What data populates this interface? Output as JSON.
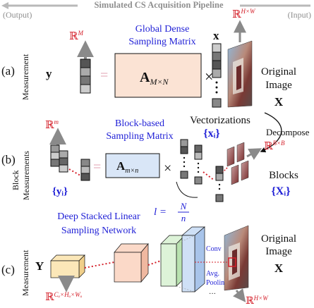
{
  "pipeline": {
    "title": "Simulated CS Acquisition Pipeline",
    "output_label": "(Output)",
    "input_label": "(Input)"
  },
  "panel_a": {
    "label": "(a)",
    "measurement_label": "Measurement",
    "space_m": "ℝ",
    "space_m_sup": "M",
    "y": "y",
    "equals": "=",
    "matrix_title_line1": "Global Dense",
    "matrix_title_line2": "Sampling Matrix",
    "matrix_symbol": "A",
    "matrix_sub": "M×N",
    "times": "×",
    "x": "x",
    "space_hw": "ℝ",
    "space_hw_sup": "H×W",
    "image_label_line1": "Original",
    "image_label_line2": "Image",
    "image_symbol": "X"
  },
  "decompose_label": "Decompose",
  "vectorizations_label": "Vectorizations",
  "vectorizations_symbol": "{xᵢ}",
  "panel_b": {
    "label": "(b)",
    "measurement_label_line1": "Block",
    "measurement_label_line2": "Measurements",
    "space_m": "ℝ",
    "space_m_sup": "m",
    "yi": "{yᵢ}",
    "equals": "=",
    "matrix_title_line1": "Block-based",
    "matrix_title_line2": "Sampling Matrix",
    "matrix_symbol": "A",
    "matrix_sub": "m×n",
    "times": "×",
    "space_b": "ℝ",
    "space_b_sup": "B×B",
    "blocks_label": "Blocks",
    "blocks_symbol": "{Xᵢ}",
    "ratio_l": "l =",
    "ratio_num": "N",
    "ratio_den": "n"
  },
  "panel_c": {
    "label": "(c)",
    "measurement_label": "Measurement",
    "network_title_line1": "Deep Stacked Linear",
    "network_title_line2": "Sampling Network",
    "Y": "Y",
    "space_c": "ℝ",
    "space_c_sup": "Cₒ×Hₒ×Wₒ",
    "conv_label": "Conv",
    "pool_label_line1": "Avg.",
    "pool_label_line2": "Pooling",
    "ellipsis": "···",
    "image_label_line1": "Original",
    "image_label_line2": "Image",
    "image_symbol": "X",
    "space_hw": "ℝ",
    "space_hw_sup": "H×W"
  },
  "colors": {
    "blue_text": "#1f1fd6",
    "red_accent": "#d4202a",
    "matrix_a_fill": "#fbe3d4",
    "matrix_b_fill": "#d9e6f7",
    "feature_yellow": "#fbe7b8",
    "feature_peach": "#fbd9c8",
    "feature_green": "#ddf3d8",
    "feature_blue": "#cfe0f6"
  }
}
